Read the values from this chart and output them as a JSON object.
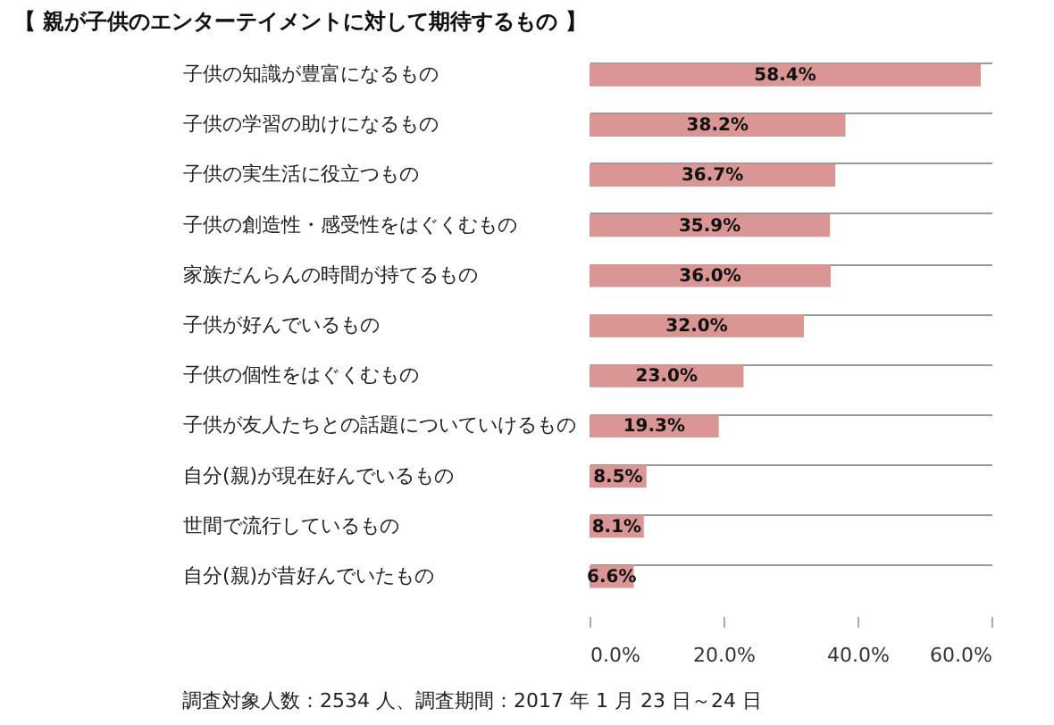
{
  "chart_data": {
    "type": "bar",
    "orientation": "horizontal",
    "title": "【 親が子供のエンターテイメントに対して期待するもの 】",
    "categories": [
      "子供の知識が豊富になるもの",
      "子供の学習の助けになるもの",
      "子供の実生活に役立つもの",
      "子供の創造性・感受性をはぐくむもの",
      "家族だんらんの時間が持てるもの",
      "子供が好んでいるもの",
      "子供の個性をはぐくむもの",
      "子供が友人たちとの話題についていけるもの",
      "自分(親)が現在好んでいるもの",
      "世間で流行しているもの",
      "自分(親)が昔好んでいたもの"
    ],
    "values": [
      58.4,
      38.2,
      36.7,
      35.9,
      36.0,
      32.0,
      23.0,
      19.3,
      8.5,
      8.1,
      6.6
    ],
    "color": "#d99694",
    "value_labels": [
      "58.4%",
      "38.2%",
      "36.7%",
      "35.9%",
      "36.0%",
      "32.0%",
      "23.0%",
      "19.3%",
      "8.5%",
      "8.1%",
      "6.6%"
    ],
    "xlim": [
      0,
      60
    ],
    "xticks": [
      {
        "value": 0,
        "label": "0.0%"
      },
      {
        "value": 20,
        "label": "20.0%"
      },
      {
        "value": 40,
        "label": "40.0%"
      },
      {
        "value": 60,
        "label": "60.0%"
      }
    ],
    "grid": "y",
    "annotations": [
      "調査対象人数：2534 人、調査期間：2017 年 1 月 23 日～24 日"
    ]
  }
}
